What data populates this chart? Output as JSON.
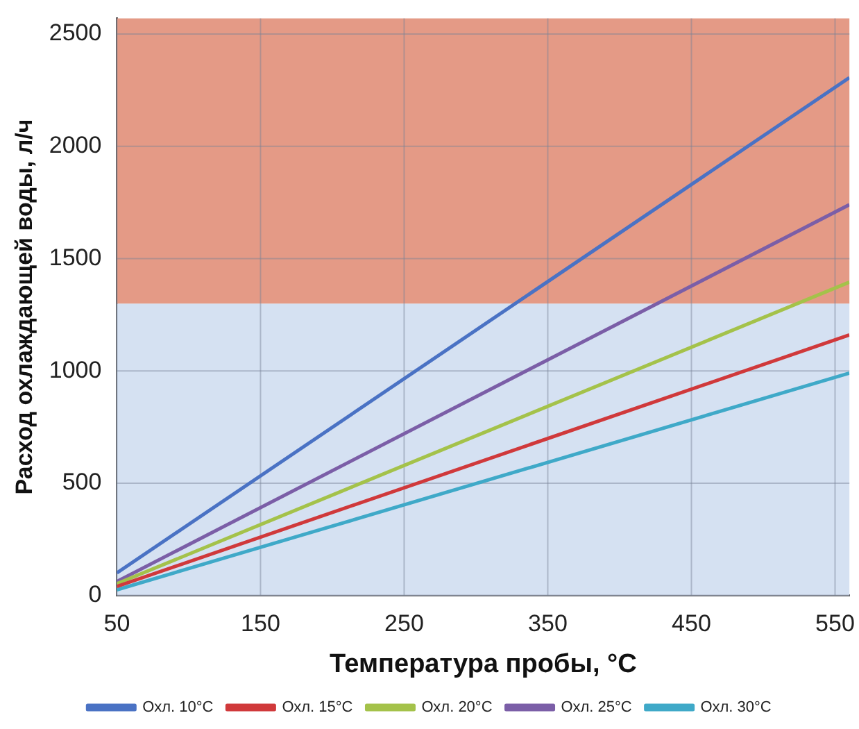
{
  "chart_data": {
    "type": "line",
    "xlabel": "Температура пробы, °C",
    "ylabel": "Расход охлаждающей воды, л/ч",
    "xlim": [
      50,
      560
    ],
    "xticks": [
      50,
      150,
      250,
      350,
      450,
      550
    ],
    "ylim": [
      0,
      2570
    ],
    "yticks": [
      0,
      500,
      1000,
      1500,
      2000,
      2500
    ],
    "x": [
      50,
      560
    ],
    "grid": true,
    "legend": "bottom",
    "marker": "none",
    "line_style": "solid",
    "bands": [
      {
        "axis": "y",
        "from": 0,
        "to": 1300,
        "color": "#d5e1f2"
      },
      {
        "axis": "y",
        "from": 1300,
        "to": 2570,
        "color": "#e49a86"
      }
    ],
    "series": [
      {
        "name": "Охл. 10°C",
        "color": "#4a72c4",
        "values": [
          100,
          2306
        ]
      },
      {
        "name": "Охл. 15°C",
        "color": "#d0393b",
        "values": [
          40,
          1160
        ]
      },
      {
        "name": "Охл. 20°C",
        "color": "#a4c24a",
        "values": [
          52,
          1395
        ]
      },
      {
        "name": "Охл. 25°C",
        "color": "#7b5ea7",
        "values": [
          62,
          1740
        ]
      },
      {
        "name": "Охл. 30°C",
        "color": "#3fa9c8",
        "values": [
          25,
          990
        ]
      }
    ]
  }
}
